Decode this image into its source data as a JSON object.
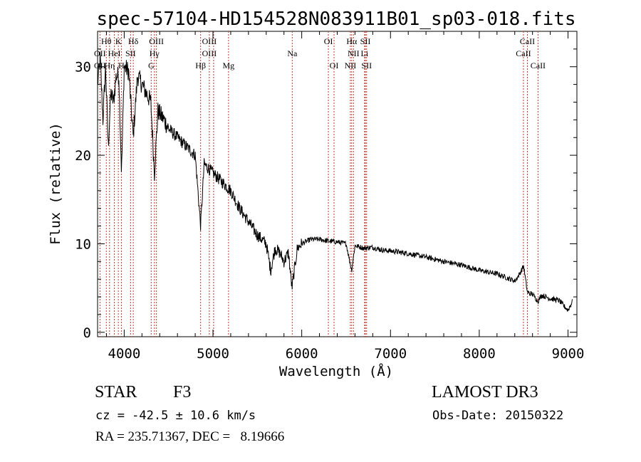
{
  "chart_data": {
    "type": "line",
    "title": "spec-57104-HD154528N083911B01_sp03-018.fits",
    "xlabel": "Wavelength (Å)",
    "ylabel": "Flux (relative)",
    "xlim": [
      3700,
      9100
    ],
    "ylim": [
      -0.5,
      34
    ],
    "xticks": [
      4000,
      5000,
      6000,
      7000,
      8000,
      9000
    ],
    "yticks": [
      0,
      10,
      20,
      30
    ],
    "grid": false,
    "series": [
      {
        "name": "spectrum",
        "x": [
          3700,
          3730,
          3760,
          3790,
          3820,
          3850,
          3880,
          3910,
          3940,
          3970,
          4000,
          4050,
          4101,
          4150,
          4200,
          4250,
          4300,
          4340,
          4380,
          4450,
          4500,
          4600,
          4700,
          4800,
          4861,
          4900,
          5000,
          5100,
          5200,
          5300,
          5400,
          5500,
          5600,
          5650,
          5700,
          5750,
          5800,
          5850,
          5890,
          5950,
          6000,
          6100,
          6200,
          6300,
          6400,
          6500,
          6563,
          6600,
          6700,
          6800,
          6900,
          7000,
          7200,
          7400,
          7600,
          7800,
          8000,
          8200,
          8400,
          8450,
          8500,
          8542,
          8600,
          8662,
          8700,
          8800,
          8900,
          8950,
          9000,
          9050
        ],
        "y": [
          28,
          31,
          24,
          30,
          21,
          27,
          26,
          29,
          29,
          18,
          30,
          29.5,
          22,
          29,
          28,
          27,
          26,
          18,
          25,
          24,
          23,
          22,
          21,
          20,
          12,
          19,
          18,
          17,
          16,
          14,
          12.5,
          11,
          10,
          7,
          9.5,
          9,
          8,
          9,
          5,
          9.5,
          10,
          10.5,
          10.5,
          10.3,
          10.2,
          10,
          7,
          9.8,
          9.5,
          9.6,
          9.3,
          9.2,
          8.9,
          8.5,
          8.0,
          7.6,
          7.0,
          6.6,
          5.8,
          6.5,
          7.5,
          4.5,
          4.3,
          3.5,
          4.2,
          3.8,
          3.6,
          3.0,
          2.5,
          3.5
        ]
      }
    ],
    "spectral_lines": [
      {
        "row": 0,
        "label": "Hθ",
        "wavelength": 3798
      },
      {
        "row": 0,
        "label": "K",
        "wavelength": 3934
      },
      {
        "row": 0,
        "label": "Hδ",
        "wavelength": 4102
      },
      {
        "row": 0,
        "label": "OIII",
        "wavelength": 4363
      },
      {
        "row": 0,
        "label": "OIII",
        "wavelength": 4959
      },
      {
        "row": 0,
        "label": "OI",
        "wavelength": 6300
      },
      {
        "row": 0,
        "label": "Hα",
        "wavelength": 6563
      },
      {
        "row": 0,
        "label": "SII",
        "wavelength": 6717
      },
      {
        "row": 0,
        "label": "CaII",
        "wavelength": 8542
      },
      {
        "row": 1,
        "label": "OII",
        "wavelength": 3727
      },
      {
        "row": 1,
        "label": "HeI",
        "wavelength": 3889
      },
      {
        "row": 1,
        "label": "SII",
        "wavelength": 4072
      },
      {
        "row": 1,
        "label": "Hγ",
        "wavelength": 4340
      },
      {
        "row": 1,
        "label": "OIII",
        "wavelength": 4959
      },
      {
        "row": 1,
        "label": "Na",
        "wavelength": 5893
      },
      {
        "row": 1,
        "label": "NII",
        "wavelength": 6583
      },
      {
        "row": 1,
        "label": "Li",
        "wavelength": 6708
      },
      {
        "row": 1,
        "label": "CaII",
        "wavelength": 8498
      },
      {
        "row": 2,
        "label": "OII",
        "wavelength": 3727
      },
      {
        "row": 2,
        "label": "Hη",
        "wavelength": 3835
      },
      {
        "row": 2,
        "label": "H",
        "wavelength": 3968
      },
      {
        "row": 2,
        "label": "G",
        "wavelength": 4304
      },
      {
        "row": 2,
        "label": "Hβ",
        "wavelength": 4861
      },
      {
        "row": 2,
        "label": "Mg",
        "wavelength": 5175
      },
      {
        "row": 2,
        "label": "OI",
        "wavelength": 6364
      },
      {
        "row": 2,
        "label": "NII",
        "wavelength": 6548
      },
      {
        "row": 2,
        "label": "SII",
        "wavelength": 6731
      },
      {
        "row": 2,
        "label": "CaII",
        "wavelength": 8662
      }
    ],
    "line_markers": [
      3727,
      3798,
      3835,
      3889,
      3934,
      3968,
      4072,
      4102,
      4304,
      4340,
      4363,
      4861,
      4959,
      5007,
      5175,
      5893,
      6300,
      6364,
      6548,
      6563,
      6583,
      6708,
      6717,
      6731,
      8498,
      8542,
      8662
    ],
    "line_color": "#c0392b"
  },
  "footer": {
    "object_class": "STAR",
    "subclass": "F3",
    "survey": "LAMOST DR3",
    "cz": "cz = -42.5 ± 10.6 km/s",
    "obs_date": "Obs-Date: 20150322",
    "coords": "RA = 235.71367, DEC =   8.19666"
  }
}
